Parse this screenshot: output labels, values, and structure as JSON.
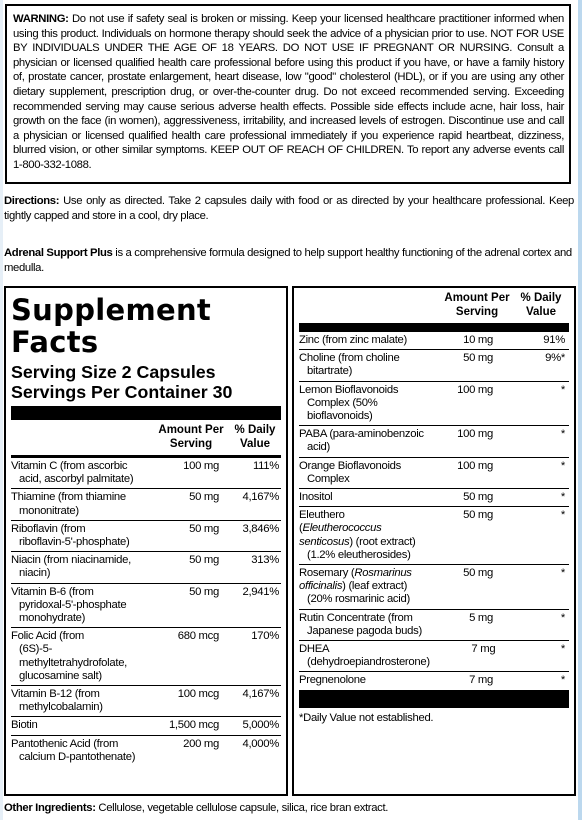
{
  "warning": {
    "label": "WARNING:",
    "text": "Do not use if safety seal is broken or missing. Keep your licensed healthcare practitioner informed when using this product. Individuals on hormone therapy should seek the advice of a physician prior to use. NOT FOR USE BY INDIVIDUALS UNDER THE AGE OF 18 YEARS. DO NOT USE IF PREGNANT OR NURSING. Consult a physician or licensed qualified health care professional before using this product if you have, or have a family history of, prostate cancer, prostate enlargement, heart disease, low \"good\" cholesterol (HDL), or if you are using any other dietary supplement, prescription drug, or over-the-counter drug. Do not exceed recommended serving. Exceeding recommended serving may cause serious adverse health effects. Possible side effects include acne, hair loss, hair growth on the face (in women), aggressiveness, irritability, and increased levels of estrogen. Discontinue use and call a physician or licensed qualified health care professional immediately if you experience rapid heartbeat, dizziness, blurred vision, or other similar symptoms. KEEP OUT OF REACH OF CHILDREN. To report any adverse events call 1-800-332-1088."
  },
  "directions": {
    "label": "Directions:",
    "text": "Use only as directed. Take 2 capsules daily with food or as directed by your healthcare professional. Keep tightly capped and store in a cool, dry place."
  },
  "description": {
    "label": "Adrenal Support Plus",
    "text": "is a comprehensive formula designed to help support healthy functioning of the adrenal cortex and medulla."
  },
  "other_ingredients": {
    "label": "Other Ingredients:",
    "text": "Cellulose, vegetable cellulose capsule, silica, rice bran extract."
  },
  "facts": {
    "title_line1": "Supplement",
    "title_line2": "Facts",
    "serving_size": "Serving Size 2 Capsules",
    "servings_per": "Servings Per Container 30",
    "col_amount_1": "Amount Per",
    "col_amount_2": "Serving",
    "col_dv_1": "% Daily",
    "col_dv_2": "Value",
    "left_rows": [
      {
        "name": "Vitamin C (from ascorbic",
        "sub": "acid, ascorbyl palmitate)",
        "amount": "100 mg",
        "dv": "111%"
      },
      {
        "name": "Thiamine (from thiamine",
        "sub": "mononitrate)",
        "amount": "50 mg",
        "dv": "4,167%"
      },
      {
        "name": "Riboflavin (from",
        "sub": "riboflavin-5'-phosphate)",
        "amount": "50 mg",
        "dv": "3,846%"
      },
      {
        "name": "Niacin (from niacinamide,",
        "sub": "niacin)",
        "amount": "50 mg",
        "dv": "313%"
      },
      {
        "name": "Vitamin B-6 (from",
        "sub": "pyridoxal-5'-phosphate",
        "sub2": "monohydrate)",
        "amount": "50 mg",
        "dv": "2,941%"
      },
      {
        "name": "Folic Acid (from",
        "sub": "(6S)-5-methyltetrahydrofolate,",
        "sub2": "glucosamine salt)",
        "amount": "680 mcg",
        "dv": "170%"
      },
      {
        "name": "Vitamin B-12 (from",
        "sub": "methylcobalamin)",
        "amount": "100 mcg",
        "dv": "4,167%"
      },
      {
        "name": "Biotin",
        "amount": "1,500 mcg",
        "dv": "5,000%"
      },
      {
        "name": "Pantothenic Acid (from",
        "sub": "calcium D-pantothenate)",
        "amount": "200 mg",
        "dv": "4,000%"
      }
    ],
    "right_rows": [
      {
        "name": "Zinc (from zinc malate)",
        "amount": "10 mg",
        "dv": "91%"
      },
      {
        "name": "Choline (from choline",
        "sub": "bitartrate)",
        "amount": "50 mg",
        "dv": "9%*"
      },
      {
        "name": "Lemon Bioflavonoids",
        "sub": "Complex (50%",
        "sub2": "bioflavonoids)",
        "amount": "100 mg",
        "dv": "*"
      },
      {
        "name": "PABA (para-aminobenzoic",
        "sub": "acid)",
        "amount": "100 mg",
        "dv": "*"
      },
      {
        "name": "Orange Bioflavonoids",
        "sub": "Complex",
        "amount": "100 mg",
        "dv": "*"
      },
      {
        "name": "Inositol",
        "amount": "50 mg",
        "dv": "*"
      },
      {
        "name": "Eleuthero (",
        "italic": "Eleutherococcus senticosus",
        "after": ") (root extract)",
        "sub2": "(1.2% eleutherosides)",
        "amount": "50 mg",
        "dv": "*"
      },
      {
        "name": "Rosemary (",
        "italic": "Rosmarinus officinalis",
        "after": ") (leaf extract)",
        "sub2": "(20% rosmarinic acid)",
        "amount": "50 mg",
        "dv": "*"
      },
      {
        "name": "Rutin Concentrate (from",
        "sub": "Japanese pagoda buds)",
        "amount": "5 mg",
        "dv": "*"
      },
      {
        "name": "DHEA",
        "sub": "(dehydroepiandrosterone)",
        "amount": "7 mg",
        "dv": "*"
      },
      {
        "name": "Pregnenolone",
        "amount": "7 mg",
        "dv": "*"
      }
    ],
    "footnote": "*Daily Value not established."
  }
}
